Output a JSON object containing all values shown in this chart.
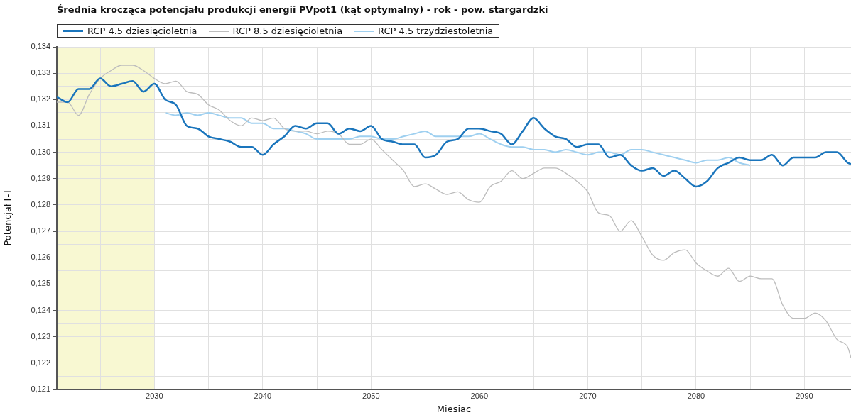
{
  "chart_data": {
    "type": "line",
    "title": "Średnia krocząca potencjału produkcji energii PVpot1 (kąt optymalny) - rok - pow. stargardzki",
    "xlabel": "Miesiac",
    "ylabel": "Potencjał [-]",
    "xlim": [
      2021,
      2094.3
    ],
    "xticks": [
      {
        "value": 2025,
        "label": null
      },
      2030,
      {
        "value": 2035,
        "label": null
      },
      2040,
      {
        "value": 2045,
        "label": null
      },
      2050,
      {
        "value": 2055,
        "label": null
      },
      2060,
      {
        "value": 2065,
        "label": null
      },
      2070,
      {
        "value": 2075,
        "label": null
      },
      2080,
      {
        "value": 2085,
        "label": null
      },
      2090
    ],
    "ylim": [
      0.121,
      0.134
    ],
    "yticks": [
      {
        "value": 0.121,
        "label": "0,121"
      },
      {
        "value": 0.1215,
        "label": null
      },
      {
        "value": 0.122,
        "label": "0,122"
      },
      {
        "value": 0.1225,
        "label": null
      },
      {
        "value": 0.123,
        "label": "0,123"
      },
      {
        "value": 0.1235,
        "label": null
      },
      {
        "value": 0.124,
        "label": "0,124"
      },
      {
        "value": 0.1245,
        "label": null
      },
      {
        "value": 0.125,
        "label": "0,125"
      },
      {
        "value": 0.1255,
        "label": null
      },
      {
        "value": 0.126,
        "label": "0,126"
      },
      {
        "value": 0.1265,
        "label": null
      },
      {
        "value": 0.127,
        "label": "0,127"
      },
      {
        "value": 0.1275,
        "label": null
      },
      {
        "value": 0.128,
        "label": "0,128"
      },
      {
        "value": 0.1285,
        "label": null
      },
      {
        "value": 0.129,
        "label": "0,129"
      },
      {
        "value": 0.1295,
        "label": null
      },
      {
        "value": 0.13,
        "label": "0,130"
      },
      {
        "value": 0.1305,
        "label": null
      },
      {
        "value": 0.131,
        "label": "0,131"
      },
      {
        "value": 0.1315,
        "label": null
      },
      {
        "value": 0.132,
        "label": "0,132"
      },
      {
        "value": 0.1325,
        "label": null
      },
      {
        "value": 0.133,
        "label": "0,133"
      },
      {
        "value": 0.1335,
        "label": null
      },
      {
        "value": 0.134,
        "label": "0,134"
      }
    ],
    "grid": true,
    "legend": "top left",
    "marker": "none",
    "line_style": "solid",
    "bands": [
      {
        "axis": "x",
        "from": 2021,
        "to": 2030,
        "color": "#f8f8d2"
      }
    ],
    "series": [
      {
        "name": "RCP 4.5 dziesięcioletnia",
        "color": "#1a75bc",
        "x": [
          2021,
          2022,
          2023,
          2024,
          2025,
          2026,
          2027,
          2028,
          2029,
          2030,
          2031,
          2032,
          2033,
          2034,
          2035,
          2036,
          2037,
          2038,
          2039,
          2040,
          2041,
          2042,
          2043,
          2044,
          2045,
          2046,
          2047,
          2048,
          2049,
          2050,
          2051,
          2052,
          2053,
          2054,
          2055,
          2056,
          2057,
          2058,
          2059,
          2060,
          2061,
          2062,
          2063,
          2064,
          2065,
          2066,
          2067,
          2068,
          2069,
          2070,
          2071,
          2072,
          2073,
          2074,
          2075,
          2076,
          2077,
          2078,
          2079,
          2080,
          2081,
          2082,
          2083,
          2084,
          2085,
          2086,
          2087,
          2088,
          2089,
          2090,
          2091,
          2092,
          2093,
          2094,
          2094.3
        ],
        "values": [
          0.1321,
          0.1319,
          0.1324,
          0.1324,
          0.1328,
          0.1325,
          0.1326,
          0.1327,
          0.1323,
          0.1326,
          0.132,
          0.1318,
          0.131,
          0.1309,
          0.1306,
          0.1305,
          0.1304,
          0.1302,
          0.1302,
          0.1299,
          0.1303,
          0.1306,
          0.131,
          0.1309,
          0.1311,
          0.1311,
          0.1307,
          0.1309,
          0.1308,
          0.131,
          0.1305,
          0.1304,
          0.1303,
          0.1303,
          0.1298,
          0.1299,
          0.1304,
          0.1305,
          0.1309,
          0.1309,
          0.1308,
          0.1307,
          0.1303,
          0.1308,
          0.1313,
          0.1309,
          0.1306,
          0.1305,
          0.1302,
          0.1303,
          0.1303,
          0.1298,
          0.1299,
          0.1295,
          0.1293,
          0.1294,
          0.1291,
          0.1293,
          0.129,
          0.1287,
          0.1289,
          0.1294,
          0.1296,
          0.1298,
          0.1297,
          0.1297,
          0.1299,
          0.1295,
          0.1298,
          0.1298,
          0.1298,
          0.13,
          0.13,
          0.1296,
          0.12955
        ]
      },
      {
        "name": "RCP 8.5 dziesięcioletnia",
        "color": "#bdbdbd",
        "x": [
          2021,
          2022,
          2023,
          2024,
          2025,
          2026,
          2027,
          2028,
          2029,
          2030,
          2031,
          2032,
          2033,
          2034,
          2035,
          2036,
          2037,
          2038,
          2039,
          2040,
          2041,
          2042,
          2043,
          2044,
          2045,
          2046,
          2047,
          2048,
          2049,
          2050,
          2051,
          2052,
          2053,
          2054,
          2055,
          2056,
          2057,
          2058,
          2059,
          2060,
          2061,
          2062,
          2063,
          2064,
          2065,
          2066,
          2067,
          2068,
          2069,
          2070,
          2071,
          2072,
          2073,
          2074,
          2075,
          2076,
          2077,
          2078,
          2079,
          2080,
          2081,
          2082,
          2083,
          2084,
          2085,
          2086,
          2087,
          2088,
          2089,
          2090,
          2091,
          2092,
          2093,
          2094,
          2094.3
        ],
        "values": [
          0.1319,
          0.1319,
          0.1314,
          0.1322,
          0.1328,
          0.1331,
          0.1333,
          0.1333,
          0.1331,
          0.1328,
          0.1326,
          0.1327,
          0.1323,
          0.1322,
          0.1318,
          0.1316,
          0.1312,
          0.131,
          0.1313,
          0.1312,
          0.1313,
          0.1309,
          0.1308,
          0.1308,
          0.1307,
          0.1308,
          0.1307,
          0.1303,
          0.1303,
          0.1305,
          0.1301,
          0.1297,
          0.1293,
          0.1287,
          0.1288,
          0.1286,
          0.1284,
          0.1285,
          0.1282,
          0.1281,
          0.1287,
          0.1289,
          0.1293,
          0.129,
          0.1292,
          0.1294,
          0.1294,
          0.1292,
          0.1289,
          0.1285,
          0.1277,
          0.1276,
          0.127,
          0.1274,
          0.1268,
          0.1261,
          0.1259,
          0.1262,
          0.1263,
          0.1258,
          0.1255,
          0.1253,
          0.1256,
          0.1251,
          0.1253,
          0.1252,
          0.1252,
          0.1242,
          0.1237,
          0.1237,
          0.1239,
          0.1236,
          0.1229,
          0.1226,
          0.1222
        ]
      },
      {
        "name": "RCP 4.5 trzydziestoletnia",
        "color": "#9fd0f0",
        "x": [
          2031,
          2032,
          2033,
          2034,
          2035,
          2036,
          2037,
          2038,
          2039,
          2040,
          2041,
          2042,
          2043,
          2044,
          2045,
          2046,
          2047,
          2048,
          2049,
          2050,
          2051,
          2052,
          2053,
          2054,
          2055,
          2056,
          2057,
          2058,
          2059,
          2060,
          2061,
          2062,
          2063,
          2064,
          2065,
          2066,
          2067,
          2068,
          2069,
          2070,
          2071,
          2072,
          2073,
          2074,
          2075,
          2076,
          2077,
          2078,
          2079,
          2080,
          2081,
          2082,
          2083,
          2084,
          2085
        ],
        "values": [
          0.1315,
          0.1314,
          0.1315,
          0.1314,
          0.1315,
          0.1314,
          0.1313,
          0.1313,
          0.1311,
          0.1311,
          0.1309,
          0.1309,
          0.1308,
          0.1307,
          0.1305,
          0.1305,
          0.1305,
          0.1305,
          0.1306,
          0.1306,
          0.1305,
          0.1305,
          0.1306,
          0.1307,
          0.1308,
          0.1306,
          0.1306,
          0.1306,
          0.1306,
          0.1307,
          0.1305,
          0.1303,
          0.1302,
          0.1302,
          0.1301,
          0.1301,
          0.13,
          0.1301,
          0.13,
          0.1299,
          0.13,
          0.13,
          0.1299,
          0.1301,
          0.1301,
          0.13,
          0.1299,
          0.1298,
          0.1297,
          0.1296,
          0.1297,
          0.1297,
          0.1298,
          0.1296,
          0.1295
        ]
      }
    ]
  }
}
